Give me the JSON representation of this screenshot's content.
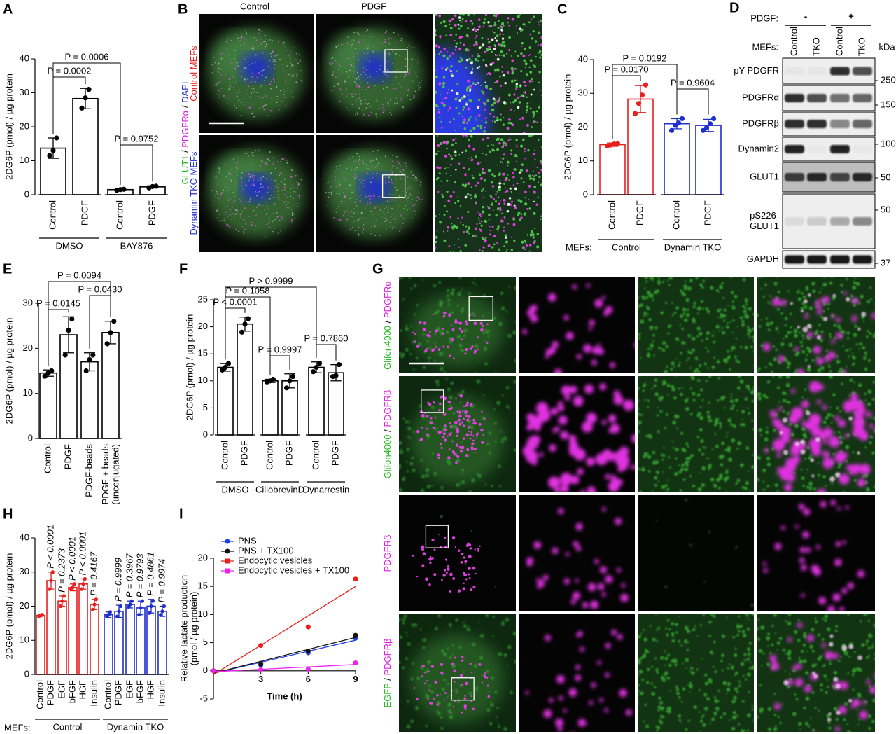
{
  "chart_data": [
    {
      "type": "bar",
      "panel": "A",
      "ylabel": "2DG6P (pmol) / µg protein",
      "ylim": [
        0,
        40
      ],
      "yticks": [
        0,
        10,
        20,
        30,
        40
      ],
      "groups": [
        {
          "name": "DMSO",
          "color": "#000000",
          "categories": [
            "Control",
            "PDGF"
          ],
          "values": [
            13.7,
            28.3
          ],
          "errors": [
            3.0,
            3.0
          ],
          "points": [
            [
              11.5,
              13.0,
              16.7
            ],
            [
              25.5,
              28.5,
              31.0
            ]
          ]
        },
        {
          "name": "BAY876",
          "color": "#000000",
          "categories": [
            "Control",
            "PDGF"
          ],
          "values": [
            1.5,
            2.3
          ],
          "errors": [
            0.2,
            0.3
          ],
          "points": [
            [
              1.3,
              1.5,
              1.6
            ],
            [
              2.0,
              2.4,
              2.5
            ]
          ]
        }
      ],
      "comparisons": [
        "P = 0.0002",
        "P = 0.0006",
        "P = 0.9752"
      ]
    },
    {
      "type": "bar",
      "panel": "C",
      "ylabel": "2DG6P (pmol) / µg protein",
      "ylim": [
        0,
        40
      ],
      "yticks": [
        0,
        10,
        20,
        30,
        40
      ],
      "group_title": "MEFs:",
      "groups": [
        {
          "name": "Control",
          "color": "#e8201e",
          "categories": [
            "Control",
            "PDGF"
          ],
          "values": [
            14.8,
            28.3
          ],
          "errors": [
            0.5,
            4.0
          ],
          "points": [
            [
              14.4,
              14.7,
              15.0,
              15.1
            ],
            [
              24.0,
              27.0,
              29.5,
              32.5
            ]
          ]
        },
        {
          "name": "Dynamin TKO",
          "color": "#1f2fcc",
          "categories": [
            "Control",
            "PDGF"
          ],
          "values": [
            21.0,
            20.5
          ],
          "errors": [
            1.5,
            1.8
          ],
          "points": [
            [
              19.0,
              20.5,
              21.2,
              22.5
            ],
            [
              19.0,
              19.8,
              21.0,
              22.5
            ]
          ]
        }
      ],
      "comparisons": [
        "P = 0.0192",
        "P = 0.0170",
        "P = 0.9604"
      ]
    },
    {
      "type": "bar",
      "panel": "E",
      "ylabel": "2DG6P (pmol) / µg protein",
      "ylim": [
        0,
        30
      ],
      "yticks": [
        0,
        10,
        20,
        30
      ],
      "groups": [
        {
          "color": "#000000",
          "categories": [
            "Control",
            "PDGF",
            "PDGF-beads",
            [
              "PDGF + beads",
              "(unconjugated)"
            ]
          ],
          "values": [
            14.5,
            23.0,
            17.0,
            23.5
          ],
          "errors": [
            0.7,
            4.0,
            2.0,
            2.5
          ],
          "points": [
            [
              13.8,
              14.5,
              15.0
            ],
            [
              18.5,
              24.0,
              26.5
            ],
            [
              15.0,
              17.5,
              18.5
            ],
            [
              21.0,
              23.5,
              26.0
            ]
          ]
        }
      ],
      "comparisons": [
        "P = 0.0094",
        "P = 0.0430",
        "P = 0.0145"
      ]
    },
    {
      "type": "bar",
      "panel": "F",
      "ylabel": "2DG6P (pmol) / µg protein",
      "ylim": [
        0,
        25
      ],
      "yticks": [
        0,
        5,
        10,
        15,
        20,
        25
      ],
      "groups": [
        {
          "name": "DMSO",
          "color": "#000000",
          "categories": [
            "Control",
            "PDGF"
          ],
          "values": [
            12.5,
            20.5
          ],
          "errors": [
            0.7,
            1.3
          ],
          "points": [
            [
              12.0,
              12.5,
              13.2
            ],
            [
              19.0,
              20.5,
              21.5
            ]
          ]
        },
        {
          "name": "CiliobrevinD",
          "color": "#000000",
          "categories": [
            "Control",
            "PDGF"
          ],
          "values": [
            10.0,
            10.0
          ],
          "errors": [
            0.3,
            1.3
          ],
          "points": [
            [
              9.8,
              10.0,
              10.3
            ],
            [
              8.7,
              10.0,
              10.8
            ]
          ]
        },
        {
          "name": "Dynarrestin",
          "color": "#000000",
          "categories": [
            "Control",
            "PDGF"
          ],
          "values": [
            12.5,
            11.5
          ],
          "errors": [
            1.0,
            1.5
          ],
          "points": [
            [
              11.7,
              12.5,
              13.2
            ],
            [
              10.8,
              11.0,
              13.0
            ]
          ]
        }
      ],
      "comparisons": [
        "P > 0.9999",
        "P = 0.1058",
        "P < 0.0001",
        "P = 0.9997",
        "P = 0.7860"
      ]
    },
    {
      "type": "bar",
      "panel": "H",
      "ylabel": "2DG6P (pmol) / µg protein",
      "ylim": [
        0,
        40
      ],
      "yticks": [
        0,
        10,
        20,
        30,
        40
      ],
      "group_title": "MEFs:",
      "groups": [
        {
          "name": "Control",
          "color": "#e8201e",
          "categories": [
            "Control",
            "PDGF",
            "EGF",
            "bFGF",
            "HGF",
            "Insulin"
          ],
          "values": [
            17.3,
            27.5,
            21.5,
            25.5,
            26.5,
            20.5
          ],
          "errors": [
            0.3,
            2.5,
            1.5,
            1.0,
            1.5,
            1.5
          ],
          "points": [
            [
              17.0,
              17.3,
              17.5
            ],
            [
              25.0,
              27.5,
              30.0
            ],
            [
              20.0,
              21.5,
              23.0
            ],
            [
              25.0,
              25.5,
              26.5
            ],
            [
              25.0,
              26.5,
              28.0
            ],
            [
              19.0,
              20.5,
              22.0
            ]
          ],
          "p_values": [
            null,
            "P < 0.0001",
            "P = 0.2373",
            "P < 0.0001",
            "P < 0.0001",
            "P = 0.4167"
          ]
        },
        {
          "name": "Dynamin TKO",
          "color": "#1f2fcc",
          "categories": [
            "Control",
            "PDGF",
            "EGF",
            "bFGF",
            "HGF",
            "Insulin"
          ],
          "values": [
            17.5,
            18.5,
            20.5,
            19.5,
            20.0,
            18.5
          ],
          "errors": [
            0.8,
            1.8,
            1.0,
            2.0,
            2.0,
            1.5
          ],
          "points": [
            [
              17.0,
              17.5,
              18.3
            ],
            [
              17.0,
              18.5,
              20.0
            ],
            [
              19.8,
              20.5,
              21.5
            ],
            [
              17.5,
              19.5,
              21.5
            ],
            [
              18.0,
              20.0,
              21.5
            ],
            [
              17.5,
              18.5,
              20.0
            ]
          ],
          "p_values": [
            null,
            "P = 0.9999",
            "P = 0.3967",
            "P = 0.9793",
            "P = 0.4861",
            "P = 0.9974"
          ]
        }
      ]
    },
    {
      "type": "line",
      "panel": "I",
      "ylabel": [
        "Relative lactate production",
        "(pmol / µg protein)"
      ],
      "xlabel": "Time (h)",
      "x": [
        0,
        3,
        6,
        9
      ],
      "xlim": [
        0,
        9
      ],
      "xticks": [
        3,
        6,
        9
      ],
      "ylim": [
        -5,
        20
      ],
      "yticks": [
        -5,
        0,
        5,
        10,
        15,
        20
      ],
      "series": [
        {
          "name": "PNS",
          "color": "#1f3fe0",
          "marker": "circle",
          "values": [
            0,
            1.0,
            3.2,
            5.8
          ]
        },
        {
          "name": "PNS + TX100",
          "color": "#111111",
          "marker": "circle",
          "values": [
            0,
            1.2,
            3.5,
            6.3
          ]
        },
        {
          "name": "Endocytic vesicles",
          "color": "#e8201e",
          "marker": "square",
          "values": [
            0,
            4.5,
            7.8,
            16.3
          ]
        },
        {
          "name": "Endocytic vesicles + TX100",
          "color": "#f020f0",
          "marker": "square",
          "values": [
            0,
            0.2,
            0.3,
            1.4
          ]
        }
      ]
    }
  ],
  "figure_b": {
    "panel": "B",
    "columns": [
      "Control",
      "PDGF"
    ],
    "rows": [
      [
        {
          "text": "Control MEFs",
          "color": "#e8201e"
        }
      ],
      [
        {
          "text": "Dynamin TKO MEFs",
          "color": "#1f2fcc"
        }
      ]
    ],
    "stain": [
      {
        "text": "GLUT1",
        "color": "#22b822"
      },
      {
        "text": " / ",
        "color": "#000000"
      },
      {
        "text": "PDGFRα",
        "color": "#e020e0"
      },
      {
        "text": " / ",
        "color": "#000000"
      },
      {
        "text": "DAPI",
        "color": "#1f2fcc"
      }
    ]
  },
  "figure_d": {
    "panel": "D",
    "treatment_label": "PDGF:",
    "treatments": [
      "-",
      "+"
    ],
    "lane_label": "MEFs:",
    "lanes": [
      "Control",
      "TKO",
      "Control",
      "TKO"
    ],
    "unit": "kDa",
    "rows": [
      [
        "pY PDGFR"
      ],
      [
        "PDGFRα"
      ],
      [
        "PDGFRβ"
      ],
      [
        "Dynamin2"
      ],
      [
        "GLUT1"
      ],
      [
        "pS226-",
        "GLUT1"
      ],
      [
        "GAPDH"
      ]
    ],
    "markers": [
      250,
      150,
      100,
      50,
      50,
      37
    ]
  },
  "figure_g": {
    "panel": "G",
    "rows": [
      [
        {
          "text": "Glifon4000",
          "color": "#22b822"
        },
        {
          "text": " / ",
          "color": "#000000"
        },
        {
          "text": "PDGFRα",
          "color": "#e020e0"
        }
      ],
      [
        {
          "text": "Glifon4000",
          "color": "#22b822"
        },
        {
          "text": " / ",
          "color": "#000000"
        },
        {
          "text": "PDGFRβ",
          "color": "#e020e0"
        }
      ],
      [
        {
          "text": "PDGFRβ",
          "color": "#e020e0"
        }
      ],
      [
        {
          "text": "EGFP",
          "color": "#22b822"
        },
        {
          "text": " / ",
          "color": "#000000"
        },
        {
          "text": "PDGFRβ",
          "color": "#e020e0"
        }
      ]
    ]
  }
}
